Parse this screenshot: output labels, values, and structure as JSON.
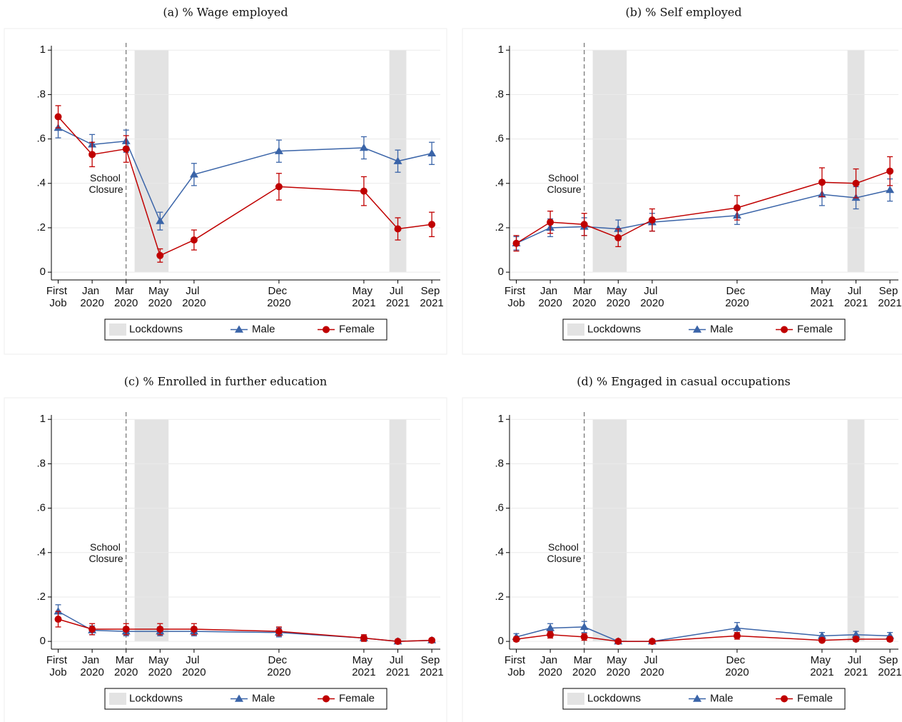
{
  "chart_data": [
    {
      "type": "line",
      "title": "(a) % Wage employed",
      "x": [
        -2,
        0,
        2,
        4,
        6,
        11,
        16,
        18,
        20
      ],
      "xlim": [
        -2.4,
        20.5
      ],
      "xticks": [
        {
          "value": -2,
          "label": "First Job"
        },
        {
          "value": 0,
          "label": "Jan 2020"
        },
        {
          "value": 2,
          "label": "Mar 2020"
        },
        {
          "value": 4,
          "label": "May 2020"
        },
        {
          "value": 6,
          "label": "Jul 2020"
        },
        {
          "value": 11,
          "label": "Dec 2020"
        },
        {
          "value": 16,
          "label": "May 2021"
        },
        {
          "value": 18,
          "label": "Jul 2021"
        },
        {
          "value": 20,
          "label": "Sep 2021"
        }
      ],
      "ylim": [
        -0.035,
        1.02
      ],
      "yticks": [
        0,
        {
          "value": 0.2,
          "label": ".2"
        },
        {
          "value": 0.4,
          "label": ".4"
        },
        {
          "value": 0.6,
          "label": ".6"
        },
        {
          "value": 0.8,
          "label": ".8"
        },
        1
      ],
      "grid": true,
      "lockdowns": [
        [
          2.5,
          4.5
        ],
        [
          17.5,
          18.5
        ]
      ],
      "lockdown_label": "Lockdowns",
      "school_closure_x": 2,
      "annotation": "School Closure",
      "series": [
        {
          "name": "Male",
          "color": "#3a64a8",
          "marker": "triangle",
          "values": [
            0.65,
            0.575,
            0.59,
            0.23,
            0.44,
            0.545,
            0.56,
            0.5,
            0.535
          ],
          "errors": [
            0.045,
            0.045,
            0.05,
            0.04,
            0.05,
            0.05,
            0.05,
            0.05,
            0.05
          ]
        },
        {
          "name": "Female",
          "color": "#c00000",
          "marker": "circle",
          "values": [
            0.7,
            0.53,
            0.555,
            0.075,
            0.145,
            0.385,
            0.365,
            0.195,
            0.215
          ],
          "errors": [
            0.05,
            0.055,
            0.06,
            0.03,
            0.045,
            0.06,
            0.065,
            0.05,
            0.055
          ]
        }
      ]
    },
    {
      "type": "line",
      "title": "(b) % Self employed",
      "x": [
        -2,
        0,
        2,
        4,
        6,
        11,
        16,
        18,
        20
      ],
      "xlim": [
        -2.4,
        20.5
      ],
      "xticks": [
        {
          "value": -2,
          "label": "First Job"
        },
        {
          "value": 0,
          "label": "Jan 2020"
        },
        {
          "value": 2,
          "label": "Mar 2020"
        },
        {
          "value": 4,
          "label": "May 2020"
        },
        {
          "value": 6,
          "label": "Jul 2020"
        },
        {
          "value": 11,
          "label": "Dec 2020"
        },
        {
          "value": 16,
          "label": "May 2021"
        },
        {
          "value": 18,
          "label": "Jul 2021"
        },
        {
          "value": 20,
          "label": "Sep 2021"
        }
      ],
      "ylim": [
        -0.035,
        1.02
      ],
      "yticks": [
        0,
        {
          "value": 0.2,
          "label": ".2"
        },
        {
          "value": 0.4,
          "label": ".4"
        },
        {
          "value": 0.6,
          "label": ".6"
        },
        {
          "value": 0.8,
          "label": ".8"
        },
        1
      ],
      "grid": true,
      "lockdowns": [
        [
          2.5,
          4.5
        ],
        [
          17.5,
          18.5
        ]
      ],
      "lockdown_label": "Lockdowns",
      "school_closure_x": 2,
      "annotation": "School Closure",
      "series": [
        {
          "name": "Male",
          "color": "#3a64a8",
          "marker": "triangle",
          "values": [
            0.13,
            0.2,
            0.205,
            0.195,
            0.225,
            0.255,
            0.35,
            0.335,
            0.37
          ],
          "errors": [
            0.03,
            0.04,
            0.04,
            0.04,
            0.04,
            0.04,
            0.05,
            0.05,
            0.05
          ]
        },
        {
          "name": "Female",
          "color": "#c00000",
          "marker": "circle",
          "values": [
            0.13,
            0.225,
            0.215,
            0.155,
            0.235,
            0.29,
            0.405,
            0.4,
            0.455
          ],
          "errors": [
            0.035,
            0.05,
            0.05,
            0.04,
            0.05,
            0.055,
            0.065,
            0.065,
            0.065
          ]
        }
      ]
    },
    {
      "type": "line",
      "title": "(c) % Enrolled in further education",
      "x": [
        -2,
        0,
        2,
        4,
        6,
        11,
        16,
        18,
        20
      ],
      "xlim": [
        -2.4,
        20.5
      ],
      "xticks": [
        {
          "value": -2,
          "label": "First Job"
        },
        {
          "value": 0,
          "label": "Jan 2020"
        },
        {
          "value": 2,
          "label": "Mar 2020"
        },
        {
          "value": 4,
          "label": "May 2020"
        },
        {
          "value": 6,
          "label": "Jul 2020"
        },
        {
          "value": 11,
          "label": "Dec 2020"
        },
        {
          "value": 16,
          "label": "May 2021"
        },
        {
          "value": 18,
          "label": "Jul 2021"
        },
        {
          "value": 20,
          "label": "Sep 2021"
        }
      ],
      "ylim": [
        -0.035,
        1.02
      ],
      "yticks": [
        0,
        {
          "value": 0.2,
          "label": ".2"
        },
        {
          "value": 0.4,
          "label": ".4"
        },
        {
          "value": 0.6,
          "label": ".6"
        },
        {
          "value": 0.8,
          "label": ".8"
        },
        1
      ],
      "grid": true,
      "lockdowns": [
        [
          2.5,
          4.5
        ],
        [
          17.5,
          18.5
        ]
      ],
      "lockdown_label": "Lockdowns",
      "school_closure_x": 2,
      "annotation": "School Closure",
      "series": [
        {
          "name": "Male",
          "color": "#3a64a8",
          "marker": "triangle",
          "values": [
            0.135,
            0.05,
            0.045,
            0.045,
            0.045,
            0.04,
            0.015,
            0,
            0.005
          ],
          "errors": [
            0.03,
            0.02,
            0.02,
            0.02,
            0.02,
            0.02,
            0.01,
            0.005,
            0.005
          ]
        },
        {
          "name": "Female",
          "color": "#c00000",
          "marker": "circle",
          "values": [
            0.1,
            0.055,
            0.055,
            0.055,
            0.055,
            0.045,
            0.015,
            0,
            0.005
          ],
          "errors": [
            0.035,
            0.025,
            0.025,
            0.025,
            0.025,
            0.02,
            0.015,
            0.005,
            0.005
          ]
        }
      ]
    },
    {
      "type": "line",
      "title": "(d) % Engaged in casual occupations",
      "x": [
        -2,
        0,
        2,
        4,
        6,
        11,
        16,
        18,
        20
      ],
      "xlim": [
        -2.4,
        20.5
      ],
      "xticks": [
        {
          "value": -2,
          "label": "First Job"
        },
        {
          "value": 0,
          "label": "Jan 2020"
        },
        {
          "value": 2,
          "label": "Mar 2020"
        },
        {
          "value": 4,
          "label": "May 2020"
        },
        {
          "value": 6,
          "label": "Jul 2020"
        },
        {
          "value": 11,
          "label": "Dec 2020"
        },
        {
          "value": 16,
          "label": "May 2021"
        },
        {
          "value": 18,
          "label": "Jul 2021"
        },
        {
          "value": 20,
          "label": "Sep 2021"
        }
      ],
      "ylim": [
        -0.035,
        1.02
      ],
      "yticks": [
        0,
        {
          "value": 0.2,
          "label": ".2"
        },
        {
          "value": 0.4,
          "label": ".4"
        },
        {
          "value": 0.6,
          "label": ".6"
        },
        {
          "value": 0.8,
          "label": ".8"
        },
        1
      ],
      "grid": true,
      "lockdowns": [
        [
          2.5,
          4.5
        ],
        [
          17.5,
          18.5
        ]
      ],
      "lockdown_label": "Lockdowns",
      "school_closure_x": 2,
      "annotation": "School Closure",
      "series": [
        {
          "name": "Male",
          "color": "#3a64a8",
          "marker": "triangle",
          "values": [
            0.02,
            0.06,
            0.065,
            0,
            0,
            0.06,
            0.025,
            0.03,
            0.025
          ],
          "errors": [
            0.015,
            0.02,
            0.025,
            0.005,
            0.005,
            0.025,
            0.015,
            0.015,
            0.015
          ]
        },
        {
          "name": "Female",
          "color": "#c00000",
          "marker": "circle",
          "values": [
            0.01,
            0.03,
            0.02,
            0,
            0,
            0.025,
            0.005,
            0.01,
            0.01
          ],
          "errors": [
            0.01,
            0.015,
            0.015,
            0.005,
            0.005,
            0.015,
            0.005,
            0.01,
            0.01
          ]
        }
      ]
    }
  ]
}
